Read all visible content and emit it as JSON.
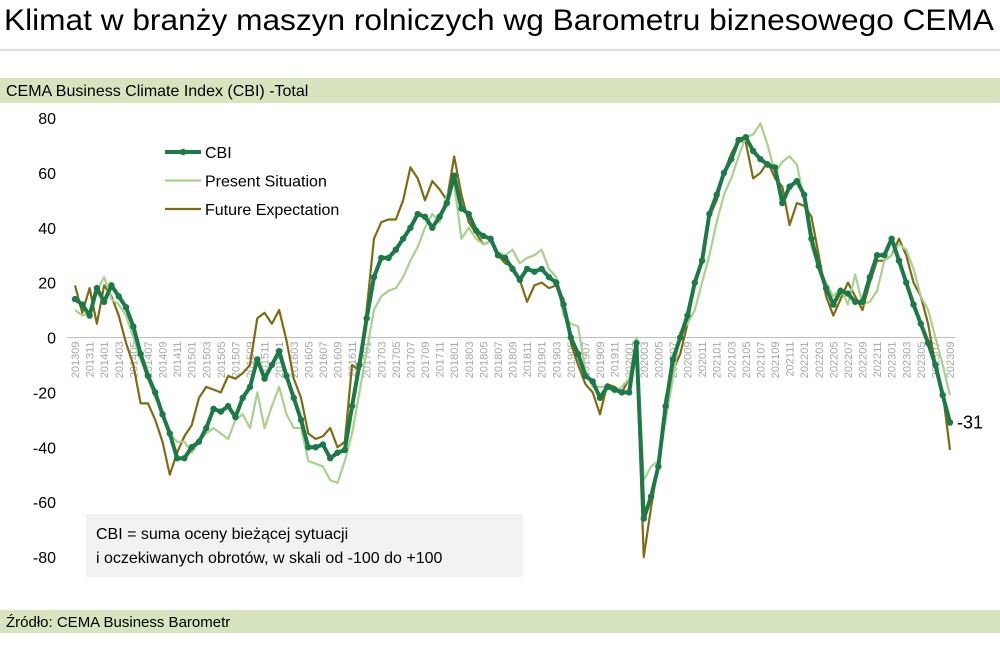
{
  "chart_data": {
    "type": "line",
    "title": "Klimat w branży maszyn rolniczych wg Barometru biznesowego CEMA",
    "subtitle": "CEMA Business Climate Index (CBI) -Total",
    "annotation": [
      "CBI = suma oceny bieżącej sytuacji",
      "i oczekiwanych obrotów, w skali od -100 do +100"
    ],
    "source": "Źródło: CEMA Business Barometr",
    "categories": [
      "201309",
      null,
      "201311",
      null,
      "201401",
      null,
      "201403",
      null,
      "201405",
      null,
      "201407",
      null,
      "201409",
      null,
      "201411",
      null,
      "201501",
      null,
      "201503",
      null,
      "201505",
      null,
      "201507",
      null,
      "201509",
      null,
      "201511",
      null,
      "201601",
      null,
      "201603",
      null,
      "201605",
      null,
      "201607",
      null,
      "201609",
      null,
      "201611",
      null,
      "201701",
      null,
      "201703",
      null,
      "201705",
      null,
      "201707",
      null,
      "201709",
      null,
      "201711",
      null,
      "201801",
      null,
      "201803",
      null,
      "201805",
      null,
      "201807",
      null,
      "201809",
      null,
      "201811",
      null,
      "201901",
      null,
      "201903",
      null,
      "201905",
      null,
      "201907",
      null,
      "201909",
      null,
      "201911",
      null,
      "202001",
      null,
      "202003",
      null,
      "202005",
      null,
      "202007",
      null,
      "202009",
      null,
      "202011",
      null,
      "202101",
      null,
      "202103",
      null,
      "202105",
      null,
      "202107",
      null,
      "202109",
      null,
      "202111",
      null,
      "202201",
      null,
      "202203",
      null,
      "202205",
      null,
      "202207",
      null,
      "202209",
      null,
      "202211",
      null,
      "202301",
      null,
      "202303",
      null,
      "202305",
      null,
      "202307",
      null,
      "202309"
    ],
    "series": [
      {
        "name": "CBI",
        "color": "#1b7a48",
        "markers": true,
        "values": [
          14,
          12,
          8,
          18,
          13,
          19,
          15,
          11,
          4,
          -6,
          -14,
          -20,
          -28,
          -35,
          -44,
          -44,
          -40,
          -38,
          -33,
          -26,
          -27,
          -25,
          -29,
          -22,
          -18,
          -8,
          -15,
          -10,
          -5,
          -14,
          -22,
          -30,
          -40,
          -40,
          -39,
          -44,
          -42,
          -41,
          -25,
          -10,
          7,
          22,
          29,
          29,
          32,
          36,
          40,
          45,
          44,
          40,
          44,
          49,
          59,
          47,
          45,
          39,
          37,
          36,
          30,
          29,
          25,
          21,
          25,
          24,
          25,
          22,
          20,
          12,
          0,
          -6,
          -14,
          -16,
          -22,
          -18,
          -19,
          -20,
          -20,
          -2,
          -66,
          -58,
          -47,
          -25,
          -8,
          0,
          8,
          20,
          28,
          45,
          52,
          60,
          65,
          72,
          73,
          68,
          65,
          63,
          62,
          49,
          55,
          57,
          52,
          36,
          26,
          18,
          12,
          17,
          16,
          13,
          13,
          22,
          30,
          30,
          36,
          28,
          20,
          12,
          5,
          -2,
          -10,
          -21,
          -31
        ]
      },
      {
        "name": "Present Situation",
        "color": "#a9d18e",
        "markers": false,
        "values": [
          10,
          8,
          9,
          17,
          22,
          14,
          12,
          8,
          0,
          -8,
          -15,
          -22,
          -27,
          -35,
          -38,
          -38,
          -42,
          -38,
          -35,
          -33,
          -35,
          -37,
          -30,
          -28,
          -33,
          -20,
          -33,
          -25,
          -18,
          -28,
          -33,
          -33,
          -45,
          -46,
          -47,
          -52,
          -53,
          -45,
          -35,
          -20,
          -5,
          10,
          15,
          17,
          18,
          22,
          28,
          33,
          40,
          45,
          42,
          52,
          56,
          36,
          40,
          36,
          34,
          35,
          31,
          30,
          32,
          27,
          29,
          30,
          32,
          25,
          22,
          8,
          5,
          4,
          -12,
          -18,
          -18,
          -18,
          -20,
          -18,
          -15,
          0,
          -52,
          -47,
          -45,
          -30,
          -15,
          2,
          5,
          10,
          20,
          30,
          42,
          52,
          58,
          66,
          73,
          74,
          78,
          70,
          60,
          64,
          66,
          63,
          50,
          33,
          25,
          20,
          15,
          18,
          12,
          23,
          12,
          13,
          17,
          28,
          30,
          34,
          32,
          25,
          15,
          10,
          0,
          -10,
          -21
        ]
      },
      {
        "name": "Future Expectation",
        "color": "#7f6b12",
        "markers": false,
        "values": [
          19,
          9,
          18,
          5,
          19,
          15,
          8,
          -2,
          -10,
          -24,
          -24,
          -30,
          -38,
          -50,
          -42,
          -36,
          -32,
          -22,
          -18,
          -19,
          -20,
          -14,
          -15,
          -13,
          -10,
          7,
          9,
          5,
          10,
          -1,
          -15,
          -22,
          -35,
          -37,
          -36,
          -33,
          -40,
          -38,
          -10,
          -12,
          10,
          36,
          42,
          43,
          43,
          50,
          62,
          58,
          50,
          57,
          54,
          50,
          66,
          52,
          42,
          38,
          34,
          35,
          30,
          27,
          26,
          21,
          13,
          19,
          20,
          18,
          19,
          14,
          -2,
          -10,
          -17,
          -20,
          -28,
          -17,
          -18,
          -20,
          -15,
          -5,
          -80,
          -62,
          -46,
          -22,
          -12,
          -6,
          5,
          20,
          28,
          44,
          50,
          60,
          67,
          72,
          71,
          58,
          60,
          64,
          58,
          55,
          41,
          49,
          48,
          44,
          30,
          15,
          8,
          14,
          20,
          15,
          10,
          20,
          28,
          28,
          30,
          36,
          30,
          20,
          15,
          5,
          -10,
          -20,
          -41
        ]
      }
    ],
    "ylim": [
      -80,
      80
    ],
    "yticks": [
      -80,
      -60,
      -40,
      -20,
      0,
      20,
      40,
      60,
      80
    ],
    "grid": false,
    "legend": "upper left"
  }
}
